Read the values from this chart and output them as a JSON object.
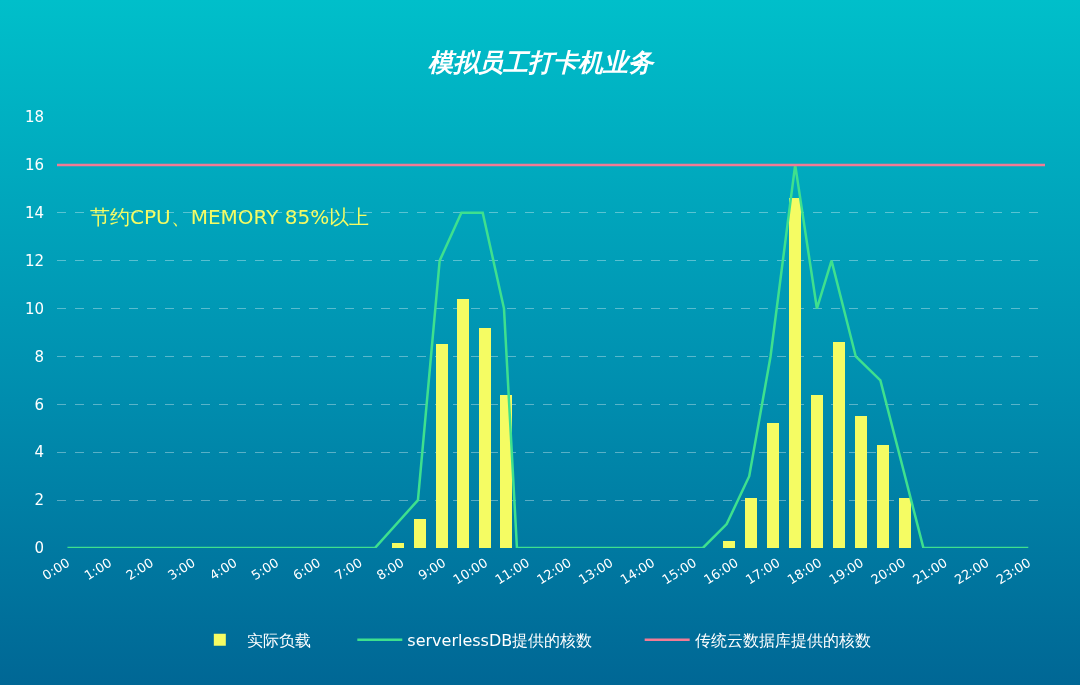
{
  "chart_data": {
    "type": "bar",
    "title": "模拟员工打卡机业务",
    "xlim": [
      -0.25,
      23.4
    ],
    "xticks": [
      {
        "value": 0,
        "label": "0:00"
      },
      {
        "value": 1,
        "label": "1:00"
      },
      {
        "value": 2,
        "label": "2:00"
      },
      {
        "value": 3,
        "label": "3:00"
      },
      {
        "value": 4,
        "label": "4:00"
      },
      {
        "value": 5,
        "label": "5:00"
      },
      {
        "value": 6,
        "label": "6:00"
      },
      {
        "value": 7,
        "label": "7:00"
      },
      {
        "value": 8,
        "label": "8:00"
      },
      {
        "value": 9,
        "label": "9:00"
      },
      {
        "value": 10,
        "label": "10:00"
      },
      {
        "value": 11,
        "label": "11:00"
      },
      {
        "value": 12,
        "label": "12:00"
      },
      {
        "value": 13,
        "label": "13:00"
      },
      {
        "value": 14,
        "label": "14:00"
      },
      {
        "value": 15,
        "label": "15:00"
      },
      {
        "value": 16,
        "label": "16:00"
      },
      {
        "value": 17,
        "label": "17:00"
      },
      {
        "value": 18,
        "label": "18:00"
      },
      {
        "value": 19,
        "label": "19:00"
      },
      {
        "value": 20,
        "label": "20:00"
      },
      {
        "value": 21,
        "label": "21:00"
      },
      {
        "value": 22,
        "label": "22:00"
      },
      {
        "value": 23,
        "label": "23:00"
      }
    ],
    "ylim": [
      0,
      18
    ],
    "yticks": [
      0,
      2,
      4,
      6,
      8,
      10,
      12,
      14,
      16,
      18
    ],
    "grid": "y",
    "legend": "bottom",
    "marker": "none",
    "line_style": "solid",
    "series": [
      {
        "name": "实际负载",
        "color": "#f5fc63",
        "x": [
          7.91,
          8.43,
          8.96,
          9.46,
          9.99,
          10.49,
          15.84,
          16.36,
          16.89,
          17.42,
          17.94,
          18.47,
          19.0,
          19.53,
          20.05
        ],
        "values": [
          0.2,
          1.2,
          8.5,
          10.4,
          9.2,
          6.4,
          0.3,
          2.1,
          5.2,
          14.6,
          6.4,
          8.6,
          5.5,
          4.3,
          2.1
        ]
      },
      {
        "name": "serverlessDB提供的核数",
        "type": "line",
        "color": "#3ee08e",
        "x": [
          0,
          7.36,
          8.39,
          8.91,
          9.43,
          9.94,
          10.45,
          10.76,
          15.21,
          15.78,
          16.32,
          16.83,
          17.42,
          17.94,
          18.29,
          18.87,
          19.46,
          20.49,
          23
        ],
        "values": [
          0,
          0,
          2,
          12,
          14,
          14,
          10,
          0,
          0,
          1,
          3,
          8,
          16,
          10,
          12,
          8,
          7,
          0,
          0
        ]
      }
    ],
    "ref_lines": [
      {
        "axis": "y",
        "value": 16,
        "label": "传统云数据库提供的核数",
        "color": "#f27b95"
      }
    ],
    "annotations": [
      "节约CPU、MEMORY 85%以上"
    ]
  }
}
